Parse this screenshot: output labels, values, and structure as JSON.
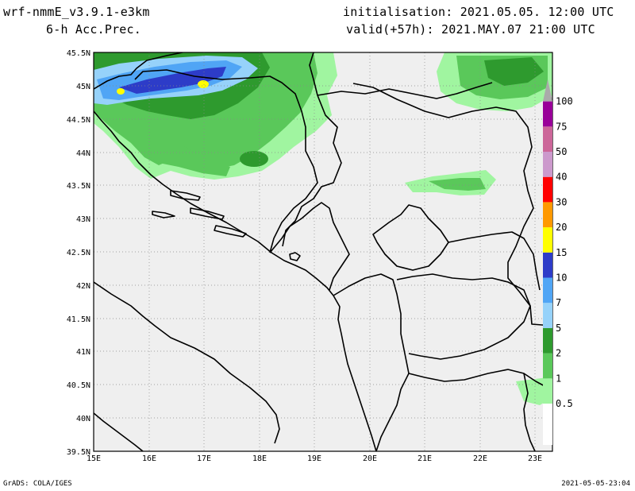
{
  "header": {
    "model": "wrf-nmmE_v3.9.1-e3km",
    "field": "6-h Acc.Prec.",
    "init": "initialisation: 2021.05.05. 12:00 UTC",
    "valid": "valid(+57h): 2021.MAY.07 21:00 UTC"
  },
  "map": {
    "lon_labels": [
      "15E",
      "16E",
      "17E",
      "18E",
      "19E",
      "20E",
      "21E",
      "22E",
      "23E"
    ],
    "lat_labels": [
      "45.5N",
      "45N",
      "44.5N",
      "44N",
      "43.5N",
      "43N",
      "42.5N",
      "42N",
      "41.5N",
      "41N",
      "40.5N",
      "40N",
      "39.5N"
    ],
    "grid": true,
    "background_color": "#efefef"
  },
  "colorbar": {
    "levels": [
      "0.5",
      "1",
      "2",
      "5",
      "7",
      "10",
      "15",
      "20",
      "30",
      "40",
      "50",
      "75",
      "100"
    ],
    "colors": [
      "#a0f5a0",
      "#5ac85a",
      "#2e9a2e",
      "#96d2fa",
      "#50a5f5",
      "#2d3cc8",
      "#ffff00",
      "#ff9900",
      "#ff0000",
      "#cc99cc",
      "#cc6699",
      "#990099",
      "#aaaaaa"
    ]
  },
  "footer": {
    "left": "GrADS: COLA/IGES",
    "right": "2021-05-05-23:04"
  }
}
